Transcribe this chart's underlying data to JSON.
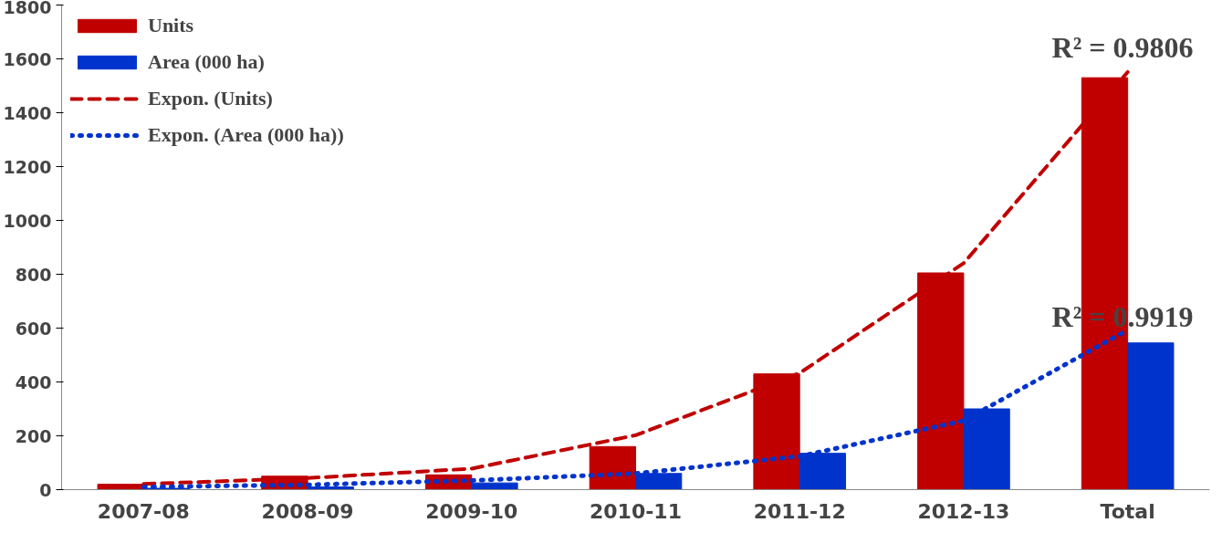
{
  "chart_data": {
    "type": "bar",
    "categories": [
      "2007-08",
      "2008-09",
      "2009-10",
      "2010-11",
      "2011-12",
      "2012-13",
      "Total"
    ],
    "series": [
      {
        "name": "Units",
        "color": "#c00000",
        "values": [
          20,
          50,
          55,
          160,
          430,
          805,
          1530
        ]
      },
      {
        "name": "Area (000 ha)",
        "color": "#0033cc",
        "values": [
          5,
          10,
          25,
          60,
          135,
          300,
          545
        ]
      },
      {
        "name": "Expon. (Units)",
        "type": "line",
        "line_style": "dashed",
        "color": "#c00000",
        "values": [
          21,
          43,
          78,
          202,
          433,
          841,
          1551
        ]
      },
      {
        "name": "Expon. (Area (000 ha))",
        "type": "line",
        "line_style": "dotted",
        "color": "#0033cc",
        "values": [
          10,
          18,
          34,
          60,
          124,
          256,
          593
        ]
      }
    ],
    "ylim": [
      0,
      1800
    ],
    "yticks": [
      0,
      200,
      400,
      600,
      800,
      1000,
      1200,
      1400,
      1600,
      1800
    ],
    "grid": false,
    "legend": "top left",
    "marker": "none",
    "annotations": [
      "R² = 0.9806",
      "R² = 0.9919"
    ]
  }
}
